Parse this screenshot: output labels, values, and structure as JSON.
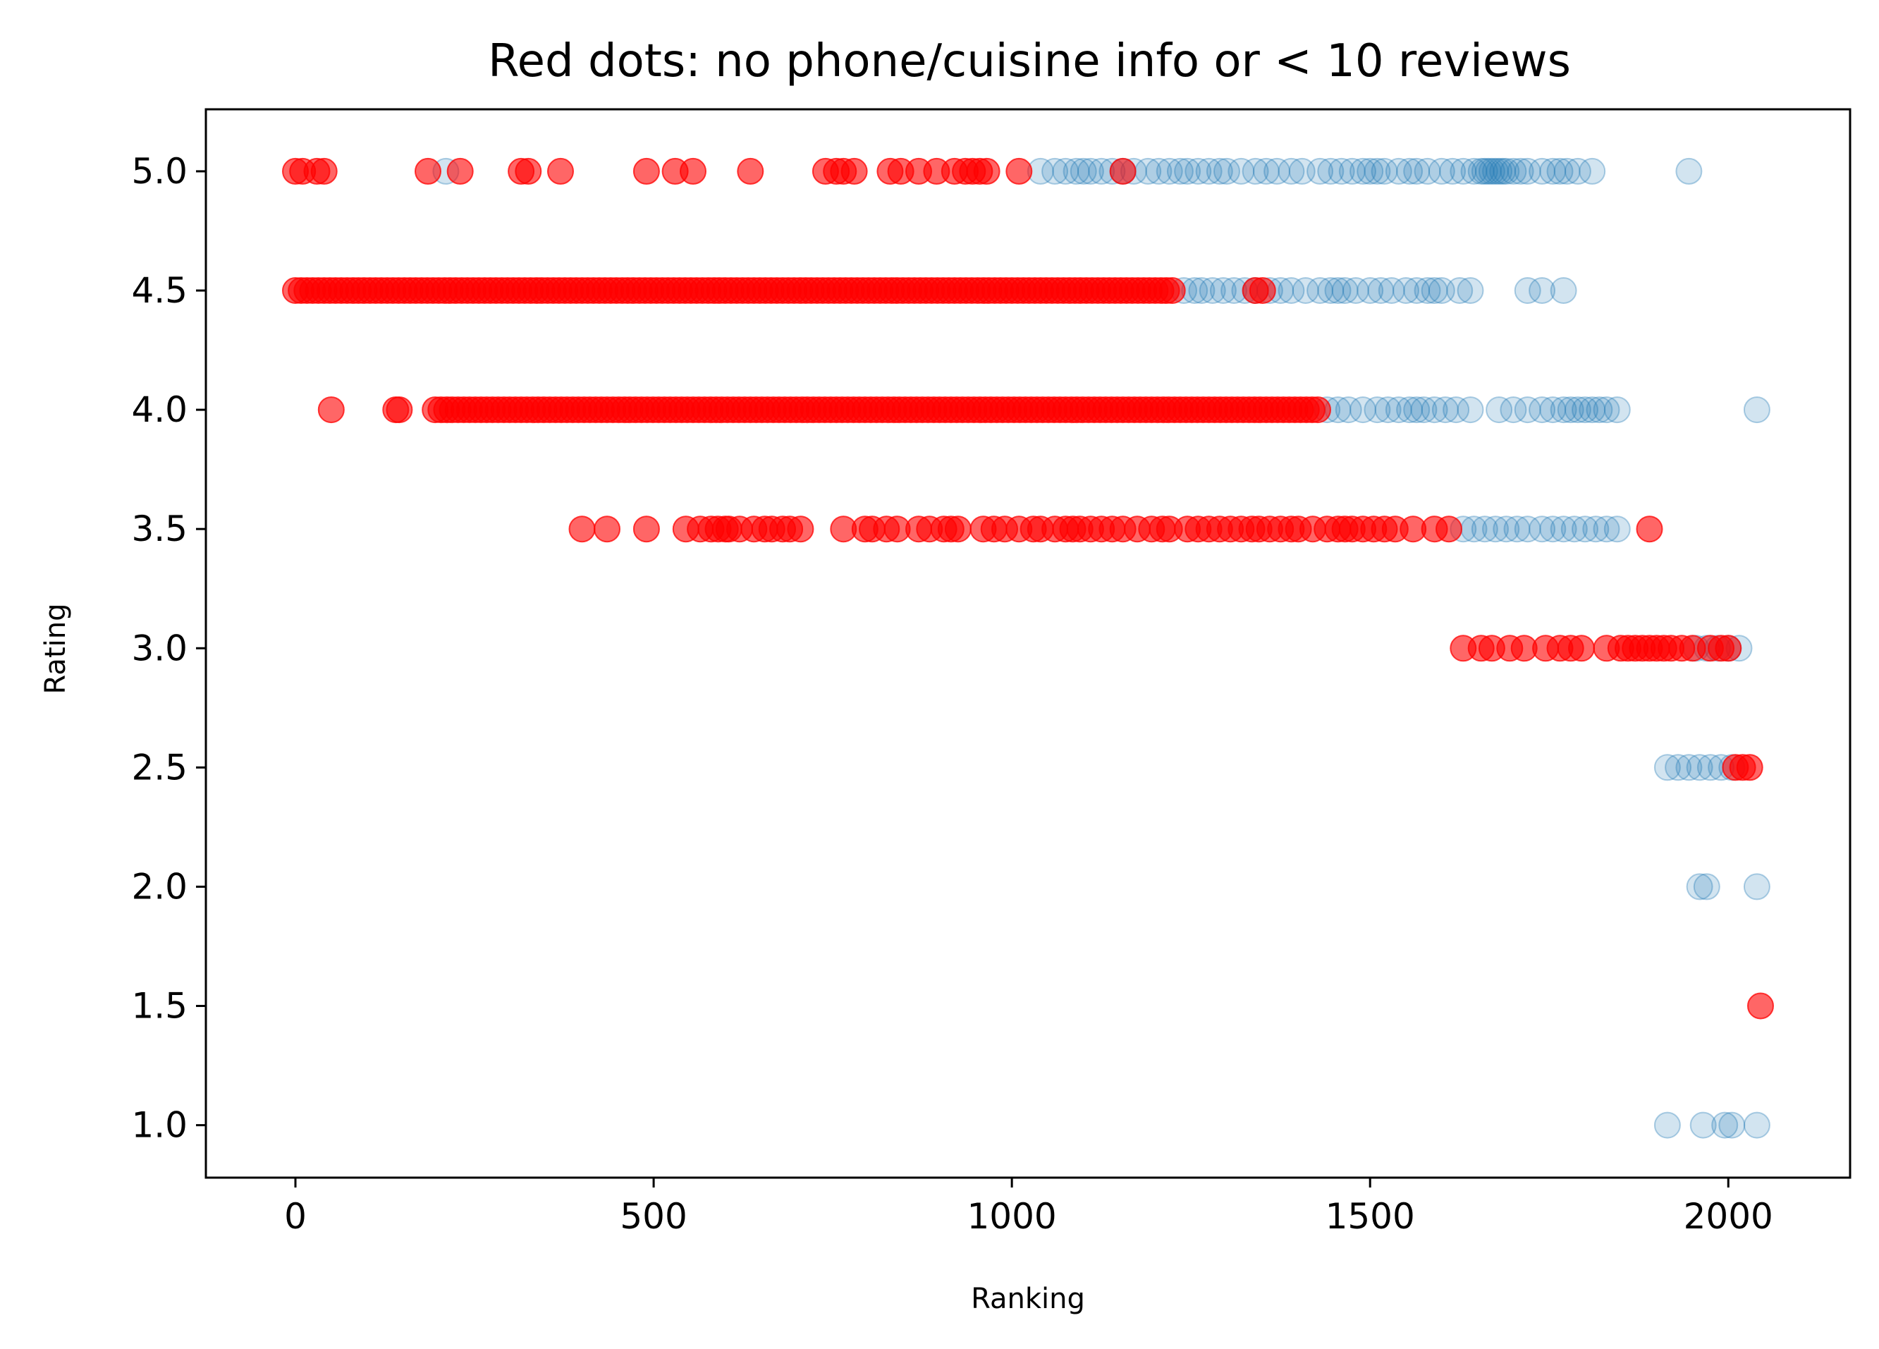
{
  "chart_data": {
    "type": "scatter",
    "title": "Red dots: no phone/cuisine info or < 10 reviews",
    "xlabel": "Ranking",
    "ylabel": "Rating",
    "xlim": [
      -125,
      2170
    ],
    "ylim": [
      0.78,
      5.26
    ],
    "xticks": [
      0,
      500,
      1000,
      1500,
      2000
    ],
    "xtick_labels": [
      "0",
      "500",
      "1000",
      "1500",
      "2000"
    ],
    "yticks": [
      1.0,
      1.5,
      2.0,
      2.5,
      3.0,
      3.5,
      4.0,
      4.5,
      5.0
    ],
    "ytick_labels": [
      "1.0",
      "1.5",
      "2.0",
      "2.5",
      "3.0",
      "3.5",
      "4.0",
      "4.5",
      "5.0"
    ],
    "grid": false,
    "series": [
      {
        "color": "#1f77b4",
        "alpha": 0.2,
        "points": [
          {
            "y": 5.0,
            "x": [
              210,
              1040,
              1060,
              1075,
              1090,
              1100,
              1110,
              1125,
              1140,
              1155,
              1170,
              1190,
              1205,
              1220,
              1235,
              1245,
              1260,
              1275,
              1290,
              1300,
              1320,
              1340,
              1355,
              1370,
              1390,
              1405,
              1430,
              1445,
              1460,
              1475,
              1490,
              1500,
              1510,
              1520,
              1540,
              1555,
              1565,
              1580,
              1600,
              1615,
              1630,
              1645,
              1655,
              1660,
              1665,
              1670,
              1675,
              1680,
              1685,
              1690,
              1700,
              1710,
              1720,
              1740,
              1755,
              1765,
              1775,
              1790,
              1810,
              1945
            ]
          },
          {
            "y": 4.5,
            "x": [
              1240,
              1255,
              1265,
              1280,
              1295,
              1310,
              1325,
              1340,
              1360,
              1375,
              1390,
              1410,
              1430,
              1445,
              1455,
              1465,
              1480,
              1500,
              1515,
              1530,
              1550,
              1565,
              1580,
              1590,
              1600,
              1625,
              1640,
              1720,
              1740,
              1770
            ]
          },
          {
            "y": 4.0,
            "x": [
              1440,
              1455,
              1470,
              1490,
              1510,
              1525,
              1540,
              1555,
              1565,
              1575,
              1590,
              1605,
              1620,
              1640,
              1680,
              1700,
              1720,
              1740,
              1755,
              1770,
              1780,
              1790,
              1800,
              1810,
              1820,
              1830,
              1845,
              2040
            ]
          },
          {
            "y": 3.5,
            "x": [
              1630,
              1645,
              1660,
              1675,
              1690,
              1705,
              1720,
              1740,
              1755,
              1770,
              1785,
              1800,
              1815,
              1830,
              1845
            ]
          },
          {
            "y": 3.0,
            "x": [
              1955,
              1970,
              1985,
              2000,
              2015
            ]
          },
          {
            "y": 2.5,
            "x": [
              1915,
              1930,
              1945,
              1960,
              1975,
              1990,
              2005
            ]
          },
          {
            "y": 2.0,
            "x": [
              1960,
              1970,
              2040
            ]
          },
          {
            "y": 1.0,
            "x": [
              1915,
              1965,
              1995,
              2005,
              2040
            ]
          }
        ]
      },
      {
        "color": "#ff0000",
        "alpha": 0.6,
        "points": [
          {
            "y": 5.0,
            "x": [
              0,
              10,
              30,
              40,
              185,
              230,
              315,
              325,
              370,
              490,
              530,
              555,
              635,
              740,
              755,
              765,
              780,
              830,
              845,
              870,
              895,
              920,
              935,
              945,
              955,
              965,
              1010,
              1155
            ]
          },
          {
            "y": 4.5,
            "range": [
              0,
              1230
            ],
            "step": 8,
            "extra": [
              1340,
              1350
            ]
          },
          {
            "y": 4.0,
            "range": [
              195,
              1430
            ],
            "step": 8,
            "extra": [
              50,
              140,
              145
            ]
          },
          {
            "y": 3.5,
            "x": [
              400,
              435,
              490,
              545,
              565,
              580,
              590,
              600,
              605,
              620,
              640,
              655,
              665,
              680,
              690,
              705,
              765,
              795,
              805,
              825,
              840,
              870,
              885,
              905,
              915,
              925,
              960,
              975,
              990,
              1010,
              1030,
              1040,
              1060,
              1075,
              1085,
              1095,
              1110,
              1125,
              1140,
              1155,
              1175,
              1195,
              1210,
              1220,
              1245,
              1260,
              1275,
              1290,
              1305,
              1320,
              1335,
              1345,
              1360,
              1375,
              1390,
              1400,
              1420,
              1440,
              1455,
              1465,
              1475,
              1490,
              1505,
              1520,
              1535,
              1560,
              1590,
              1610,
              1890
            ]
          },
          {
            "y": 3.0,
            "x": [
              1630,
              1655,
              1670,
              1695,
              1715,
              1745,
              1765,
              1780,
              1795,
              1830,
              1850,
              1860,
              1870,
              1880,
              1890,
              1900,
              1910,
              1920,
              1935,
              1950,
              1975,
              1990,
              2000
            ]
          },
          {
            "y": 2.5,
            "x": [
              2010,
              2020,
              2030
            ]
          },
          {
            "y": 1.5,
            "x": [
              2045
            ]
          }
        ]
      }
    ]
  }
}
